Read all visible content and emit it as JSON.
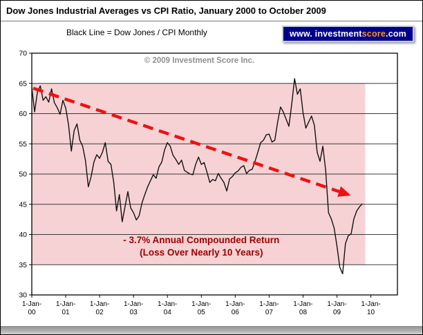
{
  "header": {
    "title": "Dow Jones Industrial Averages vs CPI Ratio, January 2000 to October 2009",
    "subtitle": "Black Line = Dow Jones / CPI Monthly"
  },
  "badge": {
    "prefix": "www. investment",
    "highlight": "score",
    "suffix": ".com",
    "bg_color": "#00008B",
    "text_color": "#ffffff",
    "highlight_color": "#ff9900"
  },
  "chart_data": {
    "type": "line",
    "title": "Dow Jones Industrial Averages vs CPI Ratio, January 2000 to October 2009",
    "watermark": "© 2009 Investment Score Inc.",
    "ylim": [
      30,
      70
    ],
    "y_ticks": [
      30,
      35,
      40,
      45,
      50,
      55,
      60,
      65,
      70
    ],
    "x_tick_prefix": "1-Jan-",
    "x_tick_years": [
      "00",
      "01",
      "02",
      "03",
      "04",
      "05",
      "06",
      "07",
      "08",
      "09",
      "10"
    ],
    "grid": "horizontal",
    "legend": "none",
    "series": [
      {
        "name": "Dow Jones / CPI Monthly",
        "color": "#111111",
        "start": "2000-01",
        "end": "2009-10",
        "values": [
          64.3,
          60.3,
          63.6,
          64.6,
          62.2,
          62.8,
          61.9,
          64.1,
          61.8,
          61.0,
          59.9,
          62.2,
          60.9,
          58.2,
          53.8,
          57.2,
          58.3,
          55.6,
          54.6,
          52.2,
          47.9,
          49.6,
          52.0,
          53.2,
          52.6,
          53.6,
          55.2,
          52.1,
          51.6,
          48.6,
          43.9,
          46.6,
          42.1,
          44.6,
          47.1,
          44.4,
          43.6,
          42.4,
          43.1,
          45.2,
          46.6,
          47.9,
          48.9,
          49.9,
          49.3,
          51.2,
          52.0,
          54.0,
          55.2,
          54.6,
          53.1,
          52.4,
          51.6,
          52.3,
          50.6,
          50.3,
          50.0,
          49.9,
          51.6,
          52.8,
          51.6,
          51.9,
          50.3,
          48.6,
          49.1,
          48.9,
          50.1,
          49.3,
          48.6,
          47.2,
          49.2,
          49.6,
          50.2,
          50.5,
          51.1,
          51.4,
          50.1,
          50.6,
          50.8,
          52.1,
          53.6,
          55.2,
          55.6,
          56.5,
          56.6,
          55.3,
          55.6,
          58.6,
          61.1,
          60.3,
          59.1,
          57.9,
          61.6,
          65.8,
          63.2,
          64.1,
          60.1,
          57.6,
          58.6,
          59.6,
          58.1,
          53.6,
          52.1,
          54.6,
          50.6,
          43.6,
          42.6,
          41.1,
          38.1,
          34.6,
          33.5,
          38.5,
          39.8,
          40.1,
          42.6,
          43.9,
          44.6,
          45.1
        ]
      }
    ],
    "highlight_region": {
      "x_start_month": 0,
      "x_end_month": 118,
      "y_top": 65,
      "y_bottom": 35,
      "color": "#f6d2d4"
    },
    "trend_arrow": {
      "x1_month": 0.5,
      "y1": 64.2,
      "x2_month": 112,
      "y2": 46.6,
      "color": "#ee1111",
      "style": "dashed"
    },
    "annotation": {
      "lines": [
        "- 3.7% Annual Compounded Return",
        "(Loss Over Nearly 10 Years)"
      ],
      "color": "#990000",
      "x_month": 60,
      "y_value": 38.6
    }
  }
}
